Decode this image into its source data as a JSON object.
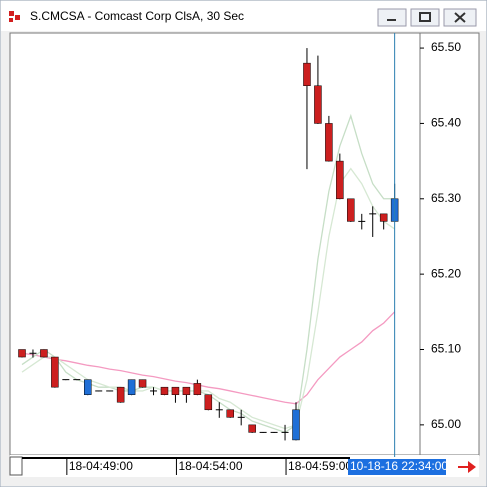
{
  "window": {
    "title": "S.CMCSA - Comcast Corp ClsA, 30 Sec"
  },
  "chart_data": {
    "type": "candlestick",
    "categories": [
      null,
      null,
      null,
      null,
      "18-04:49:00",
      null,
      null,
      null,
      null,
      null,
      null,
      null,
      null,
      null,
      "18-04:54:00",
      null,
      null,
      null,
      null,
      null,
      null,
      null,
      null,
      null,
      "18-04:59:00",
      null,
      null,
      null,
      null,
      null,
      null,
      null,
      null,
      null,
      null
    ],
    "open": [
      65.1,
      65.095,
      65.1,
      65.09,
      65.06,
      65.06,
      65.04,
      65.045,
      65.045,
      65.05,
      65.04,
      65.06,
      65.045,
      65.05,
      65.05,
      65.05,
      65.055,
      65.04,
      65.02,
      65.02,
      65.01,
      65.0,
      64.99,
      64.99,
      64.99,
      64.98,
      65.48,
      65.45,
      65.4,
      65.35,
      65.3,
      65.27,
      65.28,
      65.28,
      65.27
    ],
    "high": [
      65.1,
      65.1,
      65.1,
      65.09,
      65.06,
      65.06,
      65.06,
      65.045,
      65.045,
      65.05,
      65.06,
      65.06,
      65.05,
      65.05,
      65.05,
      65.05,
      65.06,
      65.04,
      65.03,
      65.02,
      65.02,
      65.0,
      64.99,
      64.99,
      65.0,
      65.03,
      65.5,
      65.49,
      65.41,
      65.36,
      65.3,
      65.28,
      65.29,
      65.28,
      65.32
    ],
    "low": [
      65.09,
      65.09,
      65.09,
      65.05,
      65.06,
      65.06,
      65.04,
      65.045,
      65.045,
      65.03,
      65.04,
      65.05,
      65.04,
      65.04,
      65.03,
      65.03,
      65.04,
      65.02,
      65.01,
      65.01,
      65.0,
      64.99,
      64.99,
      64.99,
      64.98,
      64.98,
      65.34,
      65.4,
      65.35,
      65.3,
      65.27,
      65.26,
      65.25,
      65.26,
      65.27
    ],
    "close": [
      65.09,
      65.095,
      65.09,
      65.05,
      65.06,
      65.06,
      65.06,
      65.045,
      65.045,
      65.03,
      65.06,
      65.05,
      65.045,
      65.04,
      65.04,
      65.04,
      65.04,
      65.02,
      65.02,
      65.01,
      65.01,
      64.99,
      64.99,
      64.99,
      64.99,
      65.02,
      65.45,
      65.4,
      65.35,
      65.3,
      65.27,
      65.27,
      65.28,
      65.27,
      65.3
    ],
    "up_color": "#1f6fd6",
    "down_color": "#cc1f1f",
    "series": [
      {
        "color": "#f49ac1",
        "values": [
          65.095,
          65.093,
          65.09,
          65.087,
          65.085,
          65.082,
          65.079,
          65.077,
          65.074,
          65.072,
          65.069,
          65.066,
          65.064,
          65.061,
          65.058,
          65.056,
          65.053,
          65.05,
          65.048,
          65.045,
          65.042,
          65.039,
          65.036,
          65.033,
          65.03,
          65.028,
          65.04,
          65.06,
          65.075,
          65.09,
          65.1,
          65.11,
          65.125,
          65.135,
          65.15
        ]
      },
      {
        "color": "#c6dec6",
        "values": [
          65.08,
          65.09,
          65.1,
          65.09,
          65.07,
          65.06,
          65.055,
          65.05,
          65.05,
          65.045,
          65.045,
          65.05,
          65.05,
          65.045,
          65.045,
          65.045,
          65.045,
          65.04,
          65.03,
          65.02,
          65.015,
          65.005,
          65.0,
          64.995,
          64.99,
          65.0,
          65.1,
          65.22,
          65.31,
          65.37,
          65.41,
          65.36,
          65.32,
          65.3,
          65.3
        ]
      },
      {
        "color": "#d6e8d3",
        "values": [
          65.07,
          65.08,
          65.09,
          65.09,
          65.08,
          65.07,
          65.06,
          65.055,
          65.05,
          65.05,
          65.045,
          65.045,
          65.05,
          65.045,
          65.045,
          65.045,
          65.045,
          65.045,
          65.035,
          65.03,
          65.02,
          65.01,
          65.005,
          65.0,
          64.995,
          65.0,
          65.06,
          65.15,
          65.25,
          65.32,
          65.34,
          65.32,
          65.29,
          65.27,
          65.26
        ]
      }
    ],
    "ylim": [
      64.96,
      65.52
    ],
    "yticks": [
      {
        "value": 65.0,
        "label": "65.00"
      },
      {
        "value": 65.1,
        "label": "65.10"
      },
      {
        "value": 65.2,
        "label": "65.20"
      },
      {
        "value": 65.3,
        "label": "65.30"
      },
      {
        "value": 65.4,
        "label": "65.40"
      },
      {
        "value": 65.5,
        "label": "65.50"
      }
    ],
    "cursor_label": "10-18-16 22:34:00"
  }
}
